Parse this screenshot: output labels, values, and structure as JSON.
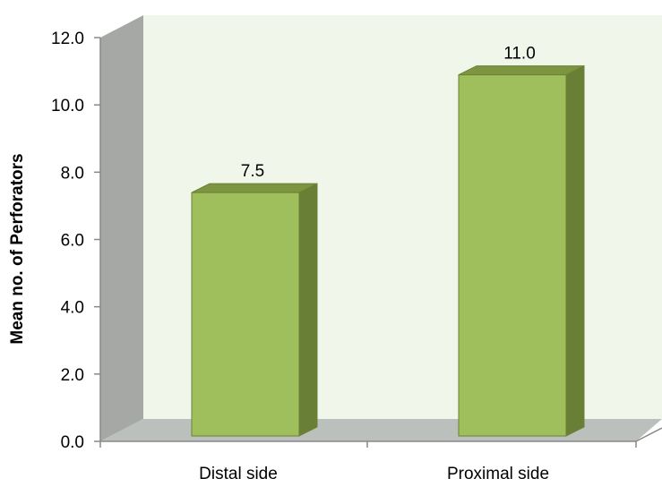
{
  "chart_data": {
    "type": "bar",
    "style": "3d-column",
    "categories": [
      "Distal side",
      "Proximal side"
    ],
    "values": [
      7.5,
      11.0
    ],
    "value_labels": [
      "7.5",
      "11.0"
    ],
    "title": "",
    "xlabel": "",
    "ylabel": "Mean no. of Perforators",
    "ylim": [
      0,
      12
    ],
    "yticks": [
      "0.0",
      "2.0",
      "4.0",
      "6.0",
      "8.0",
      "10.0",
      "12.0"
    ],
    "grid": false,
    "legend": "none",
    "colors": {
      "bar_front": "#9FBE5C",
      "bar_side": "#6A7F36",
      "bar_top": "#7D9440",
      "bar_edge": "#6B8234",
      "back_wall": "#F1F6EA",
      "side_wall": "#A5A8A5",
      "floor": "#BCC0BC"
    }
  }
}
